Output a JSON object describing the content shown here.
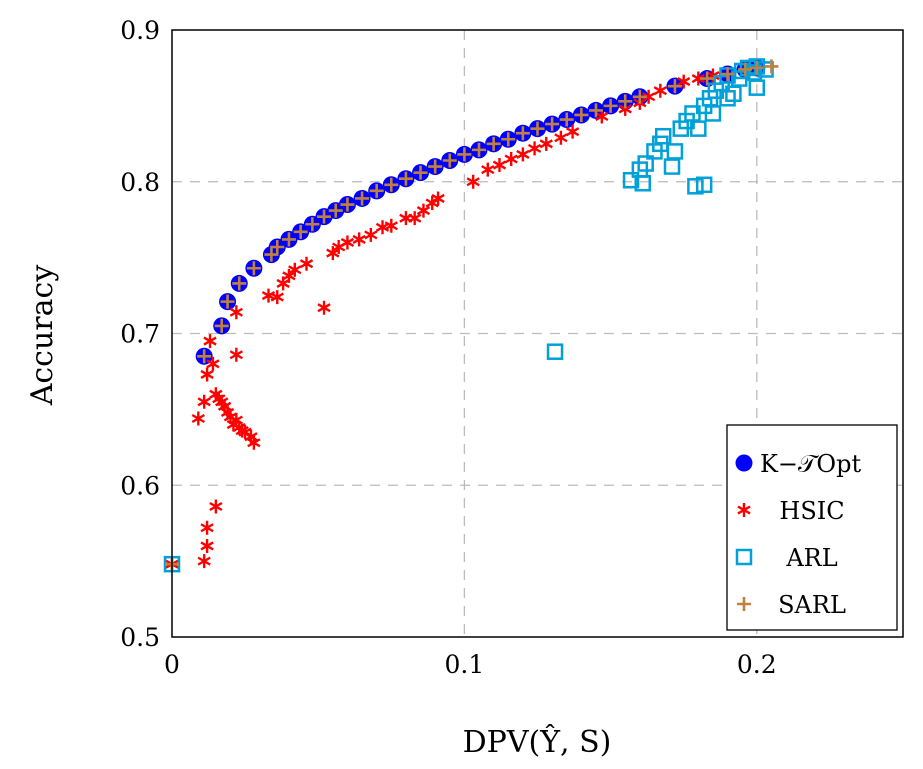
{
  "chart_data": {
    "type": "scatter",
    "xlabel": "DPV(Ŷ, S)",
    "ylabel": "Accuracy",
    "xlim": [
      0,
      0.25
    ],
    "ylim": [
      0.5,
      0.9
    ],
    "xticks": [
      "0",
      "0.1",
      "0.2"
    ],
    "xtick_values": [
      0,
      0.1,
      0.2
    ],
    "yticks": [
      "0.5",
      "0.6",
      "0.7",
      "0.8",
      "0.9"
    ],
    "ytick_values": [
      0.5,
      0.6,
      0.7,
      0.8,
      0.9
    ],
    "grid": true,
    "grid_style": "dashed",
    "legend_position": "bottom-right",
    "series": [
      {
        "name": "K−𝒯Opt",
        "marker": "circle",
        "color": "#0000ff",
        "x": [
          0.011,
          0.017,
          0.019,
          0.023,
          0.028,
          0.034,
          0.036,
          0.04,
          0.044,
          0.048,
          0.052,
          0.056,
          0.06,
          0.065,
          0.07,
          0.075,
          0.08,
          0.085,
          0.09,
          0.095,
          0.1,
          0.105,
          0.11,
          0.115,
          0.12,
          0.125,
          0.13,
          0.135,
          0.14,
          0.145,
          0.15,
          0.155,
          0.16,
          0.172,
          0.183,
          0.19,
          0.196,
          0.2
        ],
        "y": [
          0.685,
          0.705,
          0.721,
          0.733,
          0.743,
          0.752,
          0.757,
          0.762,
          0.767,
          0.772,
          0.777,
          0.781,
          0.785,
          0.789,
          0.794,
          0.798,
          0.802,
          0.806,
          0.81,
          0.814,
          0.818,
          0.821,
          0.825,
          0.828,
          0.832,
          0.835,
          0.838,
          0.841,
          0.844,
          0.847,
          0.85,
          0.853,
          0.856,
          0.863,
          0.868,
          0.871,
          0.874,
          0.875
        ]
      },
      {
        "name": "HSIC",
        "marker": "star",
        "color": "#ff0000",
        "x": [
          0,
          0.009,
          0.011,
          0.012,
          0.012,
          0.015,
          0.011,
          0.012,
          0.013,
          0.014,
          0.015,
          0.016,
          0.017,
          0.018,
          0.019,
          0.02,
          0.021,
          0.022,
          0.023,
          0.024,
          0.025,
          0.027,
          0.028,
          0.022,
          0.022,
          0.033,
          0.036,
          0.038,
          0.04,
          0.042,
          0.046,
          0.052,
          0.055,
          0.057,
          0.06,
          0.064,
          0.068,
          0.072,
          0.075,
          0.08,
          0.083,
          0.086,
          0.089,
          0.091,
          0.103,
          0.108,
          0.112,
          0.116,
          0.12,
          0.124,
          0.128,
          0.133,
          0.137,
          0.147,
          0.155,
          0.16,
          0.163,
          0.167,
          0.175,
          0.18,
          0.185
        ],
        "y": [
          0.548,
          0.644,
          0.55,
          0.56,
          0.572,
          0.586,
          0.655,
          0.673,
          0.695,
          0.68,
          0.66,
          0.657,
          0.655,
          0.652,
          0.648,
          0.645,
          0.64,
          0.643,
          0.638,
          0.636,
          0.635,
          0.632,
          0.628,
          0.686,
          0.714,
          0.725,
          0.724,
          0.733,
          0.738,
          0.742,
          0.746,
          0.717,
          0.753,
          0.757,
          0.76,
          0.762,
          0.765,
          0.77,
          0.771,
          0.776,
          0.776,
          0.781,
          0.786,
          0.789,
          0.8,
          0.808,
          0.811,
          0.815,
          0.818,
          0.822,
          0.825,
          0.829,
          0.833,
          0.843,
          0.848,
          0.852,
          0.856,
          0.86,
          0.866,
          0.868,
          0.87
        ]
      },
      {
        "name": "ARL",
        "marker": "square",
        "color": "#00a0d8",
        "x": [
          0,
          0.131,
          0.157,
          0.161,
          0.16,
          0.162,
          0.165,
          0.167,
          0.168,
          0.171,
          0.172,
          0.174,
          0.176,
          0.178,
          0.179,
          0.182,
          0.18,
          0.182,
          0.184,
          0.186,
          0.188,
          0.19,
          0.192,
          0.194,
          0.195,
          0.197,
          0.199,
          0.2,
          0.2,
          0.203,
          0.185,
          0.19
        ],
        "y": [
          0.548,
          0.688,
          0.801,
          0.799,
          0.808,
          0.812,
          0.82,
          0.825,
          0.83,
          0.81,
          0.82,
          0.835,
          0.84,
          0.845,
          0.797,
          0.798,
          0.835,
          0.85,
          0.855,
          0.86,
          0.865,
          0.87,
          0.858,
          0.868,
          0.873,
          0.875,
          0.872,
          0.862,
          0.876,
          0.874,
          0.845,
          0.855
        ]
      },
      {
        "name": "SARL",
        "marker": "plus",
        "color": "#bf8040",
        "x": [
          0,
          0.011,
          0.017,
          0.019,
          0.023,
          0.028,
          0.034,
          0.036,
          0.04,
          0.044,
          0.048,
          0.052,
          0.056,
          0.06,
          0.065,
          0.07,
          0.075,
          0.08,
          0.085,
          0.09,
          0.095,
          0.1,
          0.105,
          0.11,
          0.115,
          0.12,
          0.125,
          0.13,
          0.135,
          0.14,
          0.145,
          0.15,
          0.155,
          0.16,
          0.172,
          0.183,
          0.19,
          0.196,
          0.2,
          0.205
        ],
        "y": [
          0.548,
          0.685,
          0.705,
          0.721,
          0.733,
          0.743,
          0.752,
          0.757,
          0.762,
          0.767,
          0.772,
          0.777,
          0.781,
          0.785,
          0.789,
          0.794,
          0.798,
          0.802,
          0.806,
          0.81,
          0.814,
          0.818,
          0.821,
          0.825,
          0.828,
          0.832,
          0.835,
          0.838,
          0.841,
          0.844,
          0.847,
          0.85,
          0.853,
          0.856,
          0.863,
          0.868,
          0.871,
          0.874,
          0.875,
          0.876
        ]
      }
    ]
  }
}
